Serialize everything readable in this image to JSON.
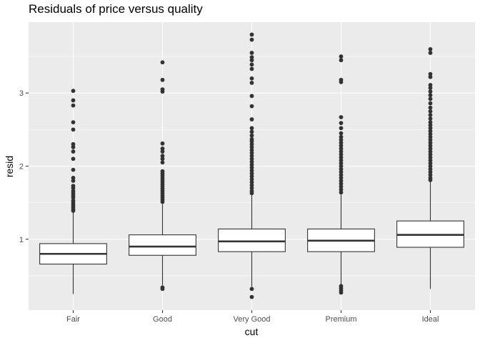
{
  "chart_data": {
    "type": "boxplot",
    "title": "Residuals of price versus quality",
    "xlabel": "cut",
    "ylabel": "resid",
    "categories": [
      "Fair",
      "Good",
      "Very Good",
      "Premium",
      "Ideal"
    ],
    "ylim": [
      0.03,
      3.97
    ],
    "yticks": [
      1,
      2,
      3
    ],
    "grid": true,
    "background": "#ebebeb",
    "gridline_color": "#ffffff",
    "box_fill": "#ffffff",
    "box_stroke": "#333333",
    "point_color": "#333333",
    "boxes": [
      {
        "category": "Fair",
        "whisker_low": 0.25,
        "q1": 0.66,
        "median": 0.8,
        "q3": 0.94,
        "whisker_high": 1.37,
        "outliers": [
          3.03,
          2.9,
          2.83,
          2.6,
          2.5,
          2.3,
          2.26,
          2.2,
          2.1,
          1.95,
          1.84,
          1.8,
          1.73,
          1.7,
          1.66,
          1.63,
          1.6,
          1.57,
          1.53,
          1.5,
          1.47,
          1.44,
          1.41,
          1.39
        ]
      },
      {
        "category": "Good",
        "whisker_low": 0.37,
        "q1": 0.78,
        "median": 0.9,
        "q3": 1.06,
        "whisker_high": 1.48,
        "outliers": [
          3.42,
          3.18,
          3.05,
          3.02,
          2.31,
          2.24,
          2.2,
          2.14,
          2.1,
          2.05,
          1.93,
          1.9,
          1.87,
          1.84,
          1.81,
          1.78,
          1.75,
          1.72,
          1.69,
          1.66,
          1.63,
          1.6,
          1.57,
          1.54,
          1.51,
          0.34,
          0.32
        ]
      },
      {
        "category": "Very Good",
        "whisker_low": 0.35,
        "q1": 0.83,
        "median": 0.97,
        "q3": 1.14,
        "whisker_high": 1.61,
        "outliers": [
          3.8,
          3.73,
          3.55,
          3.49,
          3.45,
          3.39,
          3.33,
          3.2,
          3.14,
          2.96,
          2.82,
          2.64,
          2.52,
          2.47,
          2.42,
          2.37,
          2.34,
          2.3,
          2.26,
          2.22,
          2.18,
          2.14,
          2.1,
          2.06,
          2.02,
          1.98,
          1.94,
          1.9,
          1.86,
          1.82,
          1.78,
          1.74,
          1.7,
          1.66,
          1.63,
          0.32,
          0.21
        ]
      },
      {
        "category": "Premium",
        "whisker_low": 0.38,
        "q1": 0.83,
        "median": 0.98,
        "q3": 1.14,
        "whisker_high": 1.61,
        "outliers": [
          3.5,
          3.45,
          3.18,
          3.15,
          2.67,
          2.59,
          2.52,
          2.45,
          2.4,
          2.36,
          2.32,
          2.28,
          2.24,
          2.2,
          2.16,
          2.12,
          2.08,
          2.04,
          2.0,
          1.96,
          1.92,
          1.88,
          1.84,
          1.8,
          1.76,
          1.72,
          1.68,
          1.64,
          0.36,
          0.33,
          0.3,
          0.27
        ]
      },
      {
        "category": "Ideal",
        "whisker_low": 0.32,
        "q1": 0.89,
        "median": 1.06,
        "q3": 1.25,
        "whisker_high": 1.79,
        "outliers": [
          3.6,
          3.55,
          3.26,
          3.22,
          3.11,
          3.07,
          3.02,
          2.97,
          2.92,
          2.86,
          2.8,
          2.75,
          2.7,
          2.65,
          2.6,
          2.56,
          2.52,
          2.48,
          2.44,
          2.4,
          2.36,
          2.32,
          2.28,
          2.24,
          2.2,
          2.16,
          2.12,
          2.08,
          2.04,
          2.0,
          1.96,
          1.92,
          1.88,
          1.84,
          1.81
        ]
      }
    ]
  }
}
